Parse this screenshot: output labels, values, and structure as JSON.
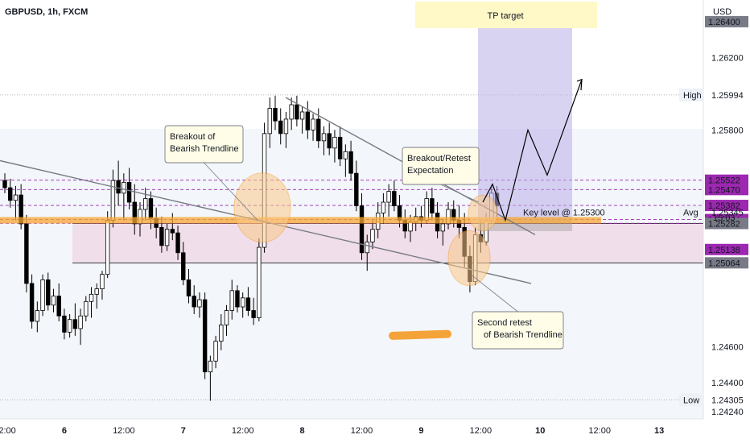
{
  "chart_data": {
    "type": "candlestick",
    "symbol": "GBPUSD, 1h, FXCM",
    "currency": "USD",
    "ylim": [
      1.242,
      1.2652
    ],
    "y_ticks": [
      "1.26400",
      "1.26200",
      "1.25800",
      "1.24600",
      "1.24400",
      "1.24240"
    ],
    "x_ticks": [
      {
        "label": "12:00",
        "bold": false,
        "i": 0
      },
      {
        "label": "6",
        "bold": true,
        "i": 11
      },
      {
        "label": "12:00",
        "bold": false,
        "i": 22
      },
      {
        "label": "7",
        "bold": true,
        "i": 33
      },
      {
        "label": "12:00",
        "bold": false,
        "i": 44
      },
      {
        "label": "8",
        "bold": true,
        "i": 55
      },
      {
        "label": "12:00",
        "bold": false,
        "i": 66
      },
      {
        "label": "9",
        "bold": true,
        "i": 77
      },
      {
        "label": "12:00",
        "bold": false,
        "i": 88
      },
      {
        "label": "10",
        "bold": true,
        "i": 99
      },
      {
        "label": "12:00",
        "bold": false,
        "i": 110
      },
      {
        "label": "13",
        "bold": true,
        "i": 121
      }
    ],
    "candles": [
      [
        1.2552,
        1.2556,
        1.2545,
        1.2548
      ],
      [
        1.2548,
        1.2553,
        1.2537,
        1.2541
      ],
      [
        1.2541,
        1.2549,
        1.253,
        1.2544
      ],
      [
        1.2544,
        1.255,
        1.2525,
        1.2528
      ],
      [
        1.2528,
        1.2533,
        1.249,
        1.2495
      ],
      [
        1.2495,
        1.25,
        1.247,
        1.2474
      ],
      [
        1.2474,
        1.2485,
        1.2468,
        1.248
      ],
      [
        1.248,
        1.25,
        1.2477,
        1.2497
      ],
      [
        1.2497,
        1.2501,
        1.248,
        1.2483
      ],
      [
        1.2483,
        1.2492,
        1.2479,
        1.2488
      ],
      [
        1.2488,
        1.2495,
        1.2474,
        1.2477
      ],
      [
        1.2477,
        1.2481,
        1.2464,
        1.2468
      ],
      [
        1.2468,
        1.2478,
        1.2465,
        1.2475
      ],
      [
        1.2475,
        1.2484,
        1.2466,
        1.247
      ],
      [
        1.247,
        1.2481,
        1.2461,
        1.2477
      ],
      [
        1.2477,
        1.2488,
        1.2474,
        1.2485
      ],
      [
        1.2485,
        1.2493,
        1.2476,
        1.2489
      ],
      [
        1.2489,
        1.2495,
        1.2481,
        1.2492
      ],
      [
        1.2492,
        1.2502,
        1.2486,
        1.25
      ],
      [
        1.25,
        1.2535,
        1.2498,
        1.253
      ],
      [
        1.253,
        1.2558,
        1.2526,
        1.2552
      ],
      [
        1.2552,
        1.2563,
        1.2538,
        1.2545
      ],
      [
        1.2545,
        1.2556,
        1.253,
        1.2551
      ],
      [
        1.2551,
        1.2559,
        1.2536,
        1.254
      ],
      [
        1.254,
        1.255,
        1.2522,
        1.2528
      ],
      [
        1.2528,
        1.254,
        1.2521,
        1.2536
      ],
      [
        1.2536,
        1.2548,
        1.253,
        1.2542
      ],
      [
        1.2542,
        1.2546,
        1.2525,
        1.2531
      ],
      [
        1.2531,
        1.2537,
        1.252,
        1.2526
      ],
      [
        1.2526,
        1.2532,
        1.2512,
        1.2516
      ],
      [
        1.2516,
        1.2528,
        1.2513,
        1.2525
      ],
      [
        1.2525,
        1.2534,
        1.2519,
        1.2523
      ],
      [
        1.2523,
        1.2527,
        1.2508,
        1.2512
      ],
      [
        1.2512,
        1.2518,
        1.2494,
        1.2497
      ],
      [
        1.2497,
        1.2503,
        1.2484,
        1.2488
      ],
      [
        1.2488,
        1.2494,
        1.2478,
        1.2482
      ],
      [
        1.2482,
        1.249,
        1.2476,
        1.2486
      ],
      [
        1.2486,
        1.249,
        1.2442,
        1.2446
      ],
      [
        1.2446,
        1.2455,
        1.243,
        1.2452
      ],
      [
        1.2452,
        1.2466,
        1.2448,
        1.2463
      ],
      [
        1.2463,
        1.2478,
        1.2458,
        1.2472
      ],
      [
        1.2472,
        1.2483,
        1.2466,
        1.248
      ],
      [
        1.248,
        1.2497,
        1.2475,
        1.2491
      ],
      [
        1.2491,
        1.2494,
        1.2479,
        1.2482
      ],
      [
        1.2482,
        1.249,
        1.2476,
        1.2487
      ],
      [
        1.2487,
        1.2493,
        1.2477,
        1.248
      ],
      [
        1.248,
        1.2487,
        1.2472,
        1.2476
      ],
      [
        1.2476,
        1.252,
        1.2474,
        1.2515
      ],
      [
        1.2515,
        1.2584,
        1.2512,
        1.2578
      ],
      [
        1.2578,
        1.2598,
        1.257,
        1.2592
      ],
      [
        1.2592,
        1.2599,
        1.258,
        1.2585
      ],
      [
        1.2585,
        1.2592,
        1.2572,
        1.2578
      ],
      [
        1.2578,
        1.259,
        1.257,
        1.2586
      ],
      [
        1.2586,
        1.2598,
        1.258,
        1.2594
      ],
      [
        1.2594,
        1.2599,
        1.2582,
        1.2586
      ],
      [
        1.2586,
        1.2593,
        1.2578,
        1.259
      ],
      [
        1.259,
        1.2596,
        1.2575,
        1.258
      ],
      [
        1.258,
        1.2589,
        1.2574,
        1.2586
      ],
      [
        1.2586,
        1.2592,
        1.257,
        1.2574
      ],
      [
        1.2574,
        1.2582,
        1.2566,
        1.2578
      ],
      [
        1.2578,
        1.2584,
        1.2566,
        1.257
      ],
      [
        1.257,
        1.258,
        1.2562,
        1.2576
      ],
      [
        1.2576,
        1.2582,
        1.256,
        1.2564
      ],
      [
        1.2564,
        1.2572,
        1.2554,
        1.2568
      ],
      [
        1.2568,
        1.2574,
        1.2552,
        1.2556
      ],
      [
        1.2556,
        1.2563,
        1.2535,
        1.2538
      ],
      [
        1.2538,
        1.2545,
        1.2508,
        1.2512
      ],
      [
        1.2512,
        1.2522,
        1.2502,
        1.2518
      ],
      [
        1.2518,
        1.253,
        1.2514,
        1.2525
      ],
      [
        1.2525,
        1.254,
        1.252,
        1.2534
      ],
      [
        1.2534,
        1.2545,
        1.2528,
        1.254
      ],
      [
        1.254,
        1.255,
        1.2532,
        1.2546
      ],
      [
        1.2546,
        1.2552,
        1.2535,
        1.2538
      ],
      [
        1.2538,
        1.2544,
        1.2526,
        1.253
      ],
      [
        1.253,
        1.2536,
        1.252,
        1.2524
      ],
      [
        1.2524,
        1.2533,
        1.2518,
        1.2529
      ],
      [
        1.2529,
        1.2537,
        1.2524,
        1.2532
      ],
      [
        1.2532,
        1.2538,
        1.2526,
        1.253
      ],
      [
        1.253,
        1.2546,
        1.2528,
        1.2542
      ],
      [
        1.2542,
        1.2548,
        1.253,
        1.2534
      ],
      [
        1.2534,
        1.254,
        1.252,
        1.2524
      ],
      [
        1.2524,
        1.2531,
        1.2516,
        1.2528
      ],
      [
        1.2528,
        1.254,
        1.2525,
        1.2536
      ],
      [
        1.2536,
        1.2541,
        1.2526,
        1.253
      ],
      [
        1.253,
        1.2538,
        1.252,
        1.2526
      ],
      [
        1.2526,
        1.2534,
        1.2504,
        1.251
      ],
      [
        1.251,
        1.2516,
        1.249,
        1.2496
      ],
      [
        1.2496,
        1.2526,
        1.2494,
        1.2522
      ],
      [
        1.2522,
        1.253,
        1.2512,
        1.2518
      ],
      [
        1.2518,
        1.2534,
        1.2516,
        1.253
      ],
      [
        1.253,
        1.2549,
        1.2528,
        1.2545
      ],
      [
        1.2545,
        1.2549,
        1.2532,
        1.2538
      ]
    ],
    "levels": [
      {
        "value": 1.25522,
        "label": "1.25522",
        "color": "#9c27b0",
        "style": "dashed"
      },
      {
        "value": 1.2547,
        "label": "1.25470",
        "color": "#9c27b0",
        "style": "dashed"
      },
      {
        "value": 1.25382,
        "label": "1.25382",
        "color": "#9c27b0",
        "style": "dashed"
      },
      {
        "value": 1.25304,
        "label": "1.25304",
        "color": "#9c27b0",
        "style": "dashed"
      },
      {
        "value": 1.25283,
        "label": "1.25283",
        "color": "#9c27b0",
        "style": "dashed"
      },
      {
        "value": 1.25138,
        "label": "1.25138",
        "color": "#9c27b0",
        "style": "none"
      },
      {
        "value": 1.25282,
        "label": "1.25282",
        "color": "#787b86",
        "style": "none"
      },
      {
        "value": 1.25064,
        "label": "1.25064",
        "color": "#787b86",
        "style": "none"
      },
      {
        "value": 1.264,
        "label": "1.26400",
        "color": "#787b86",
        "style": "none"
      }
    ],
    "high": {
      "label": "High",
      "value": 1.25994,
      "text": "1.25994"
    },
    "low": {
      "label": "Low",
      "value": 1.24305,
      "text": "1.24305"
    },
    "avg": {
      "label": "Avg",
      "value": 1.25345,
      "text": "1.25345"
    },
    "countdown": "15:03",
    "key_level": {
      "value": 1.253,
      "text": "Key level @ 1.25300"
    },
    "tp_target": "TP target",
    "annotations": [
      {
        "id": "breakout",
        "lines": [
          "Breakout of",
          "Bearish Trendline"
        ]
      },
      {
        "id": "expectation",
        "lines": [
          "Breakout/Retest",
          "Expectation"
        ]
      },
      {
        "id": "second-retest",
        "lines": [
          "Second retest",
          "of Bearish Trendline"
        ]
      }
    ],
    "colors": {
      "bull": "#ffffff",
      "bear": "#000000",
      "wick": "#000000",
      "key": "#f7a531",
      "tp_zone": "#b9aee8",
      "sl_zone": "#9e9e9e",
      "range_zone": "#efd9e6",
      "circle": "#fbc98a"
    }
  }
}
